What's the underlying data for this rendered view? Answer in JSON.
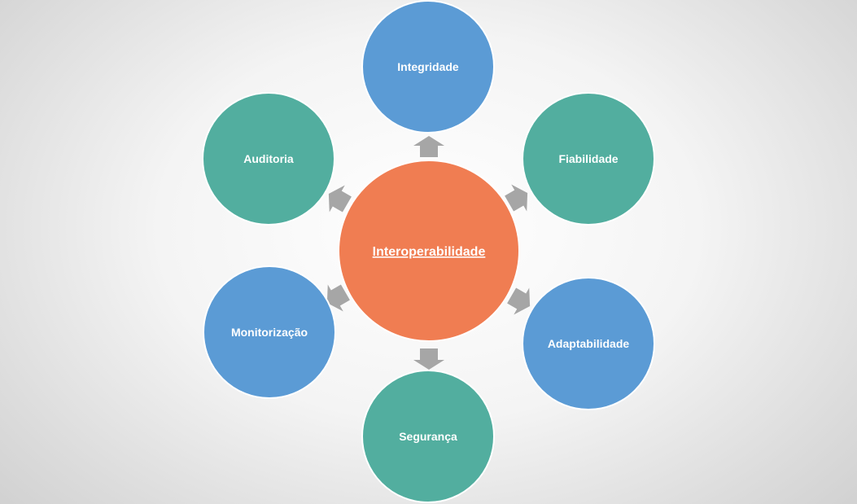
{
  "center": {
    "label": "Interoperabilidade",
    "color": "#f07d52"
  },
  "nodes": [
    {
      "id": "integridade",
      "label": "Integridade",
      "color": "#5b9bd5"
    },
    {
      "id": "fiabilidade",
      "label": "Fiabilidade",
      "color": "#52ae9f"
    },
    {
      "id": "adaptabilidade",
      "label": "Adaptabilidade",
      "color": "#5b9bd5"
    },
    {
      "id": "seguranca",
      "label": "Segurança",
      "color": "#52ae9f"
    },
    {
      "id": "monitorizacao",
      "label": "Monitorização",
      "color": "#5b9bd5"
    },
    {
      "id": "auditoria",
      "label": "Auditoria",
      "color": "#52ae9f"
    }
  ],
  "arrow_color": "#a6a6a6",
  "outline_color": "#ffffff"
}
